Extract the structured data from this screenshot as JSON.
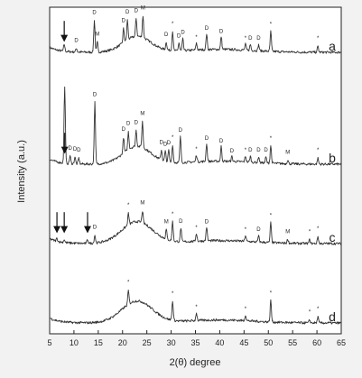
{
  "chart_data": {
    "type": "line",
    "xlabel": "2(θ) degree",
    "ylabel": "Intensity (a.u.)",
    "xlim": [
      5,
      65
    ],
    "x_ticks": [
      5,
      10,
      15,
      20,
      25,
      30,
      35,
      40,
      45,
      50,
      55,
      60,
      65
    ],
    "y_ticks_visible": false,
    "grid": false,
    "legend": "letters at right end of each curve",
    "series": [
      {
        "name": "a",
        "baseline_offset": 3,
        "hump": {
          "center": 23,
          "height": 0.8,
          "width": 4
        },
        "peaks": [
          {
            "x": 8.0,
            "h": 0.35,
            "label": ""
          },
          {
            "x": 10.5,
            "h": 0.2,
            "label": "D"
          },
          {
            "x": 14.2,
            "h": 1.6,
            "label": "D"
          },
          {
            "x": 14.8,
            "h": 0.5,
            "label": "M"
          },
          {
            "x": 20.2,
            "h": 0.7,
            "label": "D"
          },
          {
            "x": 21.0,
            "h": 1.0,
            "label": "D"
          },
          {
            "x": 22.8,
            "h": 0.9,
            "label": "D"
          },
          {
            "x": 24.2,
            "h": 1.1,
            "label": "M"
          },
          {
            "x": 29.0,
            "h": 0.4,
            "label": "D"
          },
          {
            "x": 30.3,
            "h": 1.0,
            "label": "*"
          },
          {
            "x": 31.6,
            "h": 0.4,
            "label": "D"
          },
          {
            "x": 32.4,
            "h": 0.6,
            "label": "D"
          },
          {
            "x": 35.2,
            "h": 0.35,
            "label": "*"
          },
          {
            "x": 37.3,
            "h": 0.8,
            "label": "D"
          },
          {
            "x": 40.3,
            "h": 0.65,
            "label": "D"
          },
          {
            "x": 45.3,
            "h": 0.3,
            "label": "*"
          },
          {
            "x": 46.3,
            "h": 0.3,
            "label": "D"
          },
          {
            "x": 48.0,
            "h": 0.3,
            "label": "D"
          },
          {
            "x": 50.5,
            "h": 1.0,
            "label": "*"
          },
          {
            "x": 60.2,
            "h": 0.3,
            "label": "*"
          }
        ],
        "arrows": [
          8.0
        ]
      },
      {
        "name": "b",
        "baseline_offset": 2,
        "hump": {
          "center": 23,
          "height": 0.9,
          "width": 4
        },
        "peaks": [
          {
            "x": 8.1,
            "h": 3.9,
            "label": ""
          },
          {
            "x": 9.2,
            "h": 0.4,
            "label": "D"
          },
          {
            "x": 10.2,
            "h": 0.35,
            "label": "D"
          },
          {
            "x": 11.0,
            "h": 0.3,
            "label": "D"
          },
          {
            "x": 14.3,
            "h": 3.1,
            "label": "D"
          },
          {
            "x": 20.2,
            "h": 0.8,
            "label": "D"
          },
          {
            "x": 21.2,
            "h": 0.9,
            "label": "D"
          },
          {
            "x": 22.8,
            "h": 0.8,
            "label": "D"
          },
          {
            "x": 24.1,
            "h": 1.3,
            "label": "M"
          },
          {
            "x": 28.0,
            "h": 0.5,
            "label": "D"
          },
          {
            "x": 28.8,
            "h": 0.5,
            "label": "D"
          },
          {
            "x": 29.5,
            "h": 0.6,
            "label": "D"
          },
          {
            "x": 30.3,
            "h": 0.9,
            "label": "*"
          },
          {
            "x": 31.9,
            "h": 1.3,
            "label": "D"
          },
          {
            "x": 35.2,
            "h": 0.35,
            "label": "*"
          },
          {
            "x": 37.3,
            "h": 0.9,
            "label": "D"
          },
          {
            "x": 40.3,
            "h": 0.75,
            "label": "D"
          },
          {
            "x": 42.5,
            "h": 0.25,
            "label": "D"
          },
          {
            "x": 45.3,
            "h": 0.3,
            "label": "*"
          },
          {
            "x": 46.3,
            "h": 0.3,
            "label": "D"
          },
          {
            "x": 48.0,
            "h": 0.3,
            "label": "D"
          },
          {
            "x": 49.5,
            "h": 0.3,
            "label": "D"
          },
          {
            "x": 50.5,
            "h": 0.9,
            "label": "*"
          },
          {
            "x": 54.0,
            "h": 0.2,
            "label": "M"
          },
          {
            "x": 60.2,
            "h": 0.3,
            "label": "*"
          }
        ],
        "arrows": [
          8.1
        ]
      },
      {
        "name": "c",
        "baseline_offset": 1,
        "hump": {
          "center": 23,
          "height": 1.1,
          "width": 4.5
        },
        "peaks": [
          {
            "x": 6.5,
            "h": 0.15,
            "label": ""
          },
          {
            "x": 8.0,
            "h": 0.15,
            "label": ""
          },
          {
            "x": 12.8,
            "h": 0.2,
            "label": ""
          },
          {
            "x": 14.3,
            "h": 0.4,
            "label": "D"
          },
          {
            "x": 21.2,
            "h": 0.6,
            "label": "*"
          },
          {
            "x": 24.1,
            "h": 0.6,
            "label": "M"
          },
          {
            "x": 29.0,
            "h": 0.5,
            "label": "M"
          },
          {
            "x": 30.3,
            "h": 1.0,
            "label": "*"
          },
          {
            "x": 32.0,
            "h": 0.7,
            "label": "D"
          },
          {
            "x": 35.2,
            "h": 0.4,
            "label": "*"
          },
          {
            "x": 37.3,
            "h": 0.7,
            "label": "D"
          },
          {
            "x": 45.3,
            "h": 0.3,
            "label": "*"
          },
          {
            "x": 48.0,
            "h": 0.3,
            "label": "D"
          },
          {
            "x": 50.5,
            "h": 1.0,
            "label": "*"
          },
          {
            "x": 54.0,
            "h": 0.2,
            "label": "M"
          },
          {
            "x": 58.5,
            "h": 0.2,
            "label": "*"
          },
          {
            "x": 60.2,
            "h": 0.35,
            "label": "*"
          }
        ],
        "arrows": [
          6.5,
          8.0,
          12.8
        ]
      },
      {
        "name": "d",
        "baseline_offset": 0,
        "hump": {
          "center": 23,
          "height": 1.1,
          "width": 4.5
        },
        "peaks": [
          {
            "x": 21.2,
            "h": 0.7,
            "label": "*"
          },
          {
            "x": 30.3,
            "h": 1.0,
            "label": "*"
          },
          {
            "x": 35.2,
            "h": 0.4,
            "label": "*"
          },
          {
            "x": 45.3,
            "h": 0.3,
            "label": "*"
          },
          {
            "x": 50.5,
            "h": 1.1,
            "label": "*"
          },
          {
            "x": 58.5,
            "h": 0.15,
            "label": "*"
          },
          {
            "x": 60.2,
            "h": 0.3,
            "label": "*"
          }
        ],
        "arrows": []
      }
    ]
  }
}
